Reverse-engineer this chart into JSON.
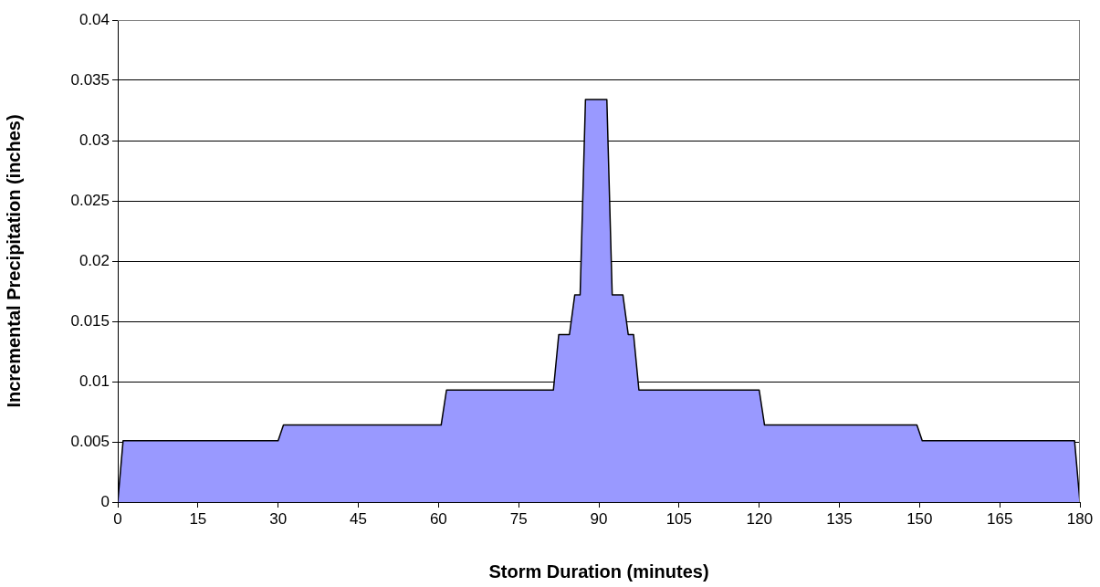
{
  "chart_data": {
    "type": "area",
    "xlabel": "Storm Duration (minutes)",
    "ylabel": "Incremental Precipitation (inches)",
    "x": [
      0,
      1,
      30,
      31,
      60.5,
      61.5,
      81.5,
      82.5,
      84.5,
      85.5,
      86.5,
      87.5,
      91.5,
      92.5,
      94.5,
      95.5,
      96.5,
      97.5,
      120,
      121,
      149.5,
      150.5,
      179,
      180
    ],
    "series": [
      {
        "color": "#9999ff",
        "values": [
          0,
          0.0051,
          0.0051,
          0.0064,
          0.0064,
          0.0093,
          0.0093,
          0.0139,
          0.0139,
          0.0172,
          0.0172,
          0.0334,
          0.0334,
          0.0172,
          0.0172,
          0.0139,
          0.0139,
          0.0093,
          0.0093,
          0.0064,
          0.0064,
          0.0051,
          0.0051,
          0
        ]
      }
    ],
    "xlim": [
      0,
      180
    ],
    "xticks": [
      0,
      15,
      30,
      45,
      60,
      75,
      90,
      105,
      120,
      135,
      150,
      165,
      180
    ],
    "ylim": [
      0,
      0.04
    ],
    "yticks": [
      0,
      0.005,
      0.01,
      0.015,
      0.02,
      0.025,
      0.03,
      0.035,
      0.04
    ],
    "grid": "y",
    "legend": false,
    "marker": "none",
    "line_style": "solid"
  }
}
